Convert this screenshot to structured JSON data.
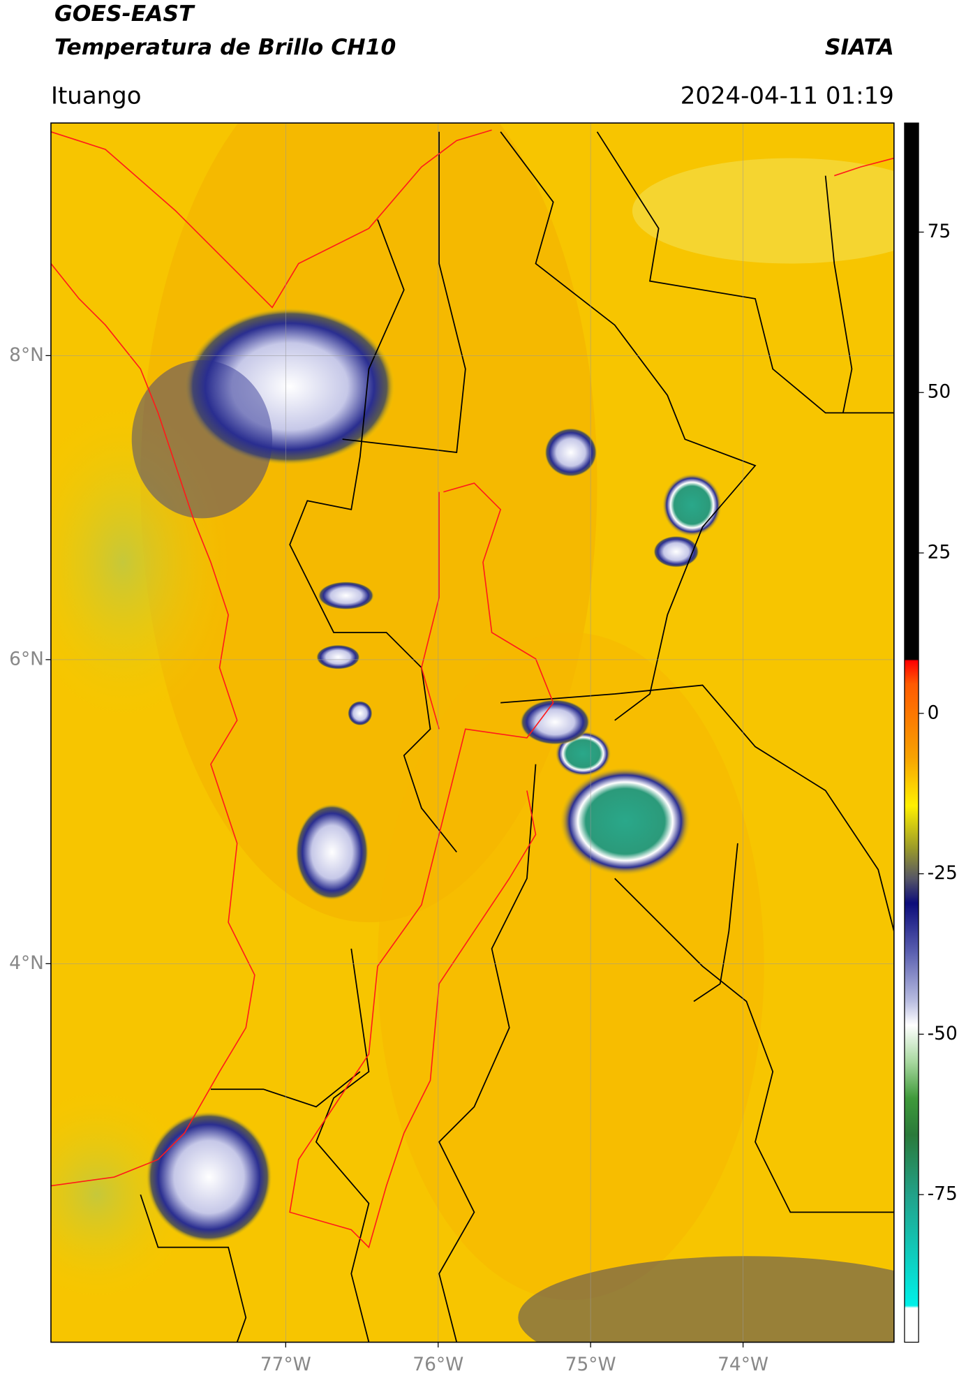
{
  "header": {
    "title": "GOES-EAST",
    "subtitle": "Temperatura de Brillo CH10",
    "brand": "SIATA",
    "location": "Ituango",
    "datetime": "2024-04-11 01:19"
  },
  "map": {
    "xlim": [
      -78.54,
      -73.01
    ],
    "ylim": [
      1.51,
      9.53
    ],
    "xticks": [
      {
        "value": -77,
        "label": "77°W"
      },
      {
        "value": -76,
        "label": "76°W"
      },
      {
        "value": -75,
        "label": "75°W"
      },
      {
        "value": -74,
        "label": "74°W"
      }
    ],
    "yticks": [
      {
        "value": 8,
        "label": "8°N"
      },
      {
        "value": 6,
        "label": "6°N"
      },
      {
        "value": 4,
        "label": "4°N"
      }
    ],
    "grid": true
  },
  "colorbar": {
    "ylim": [
      -98,
      92
    ],
    "yticks": [
      75,
      50,
      25,
      0,
      -25,
      -50,
      -75
    ]
  }
}
